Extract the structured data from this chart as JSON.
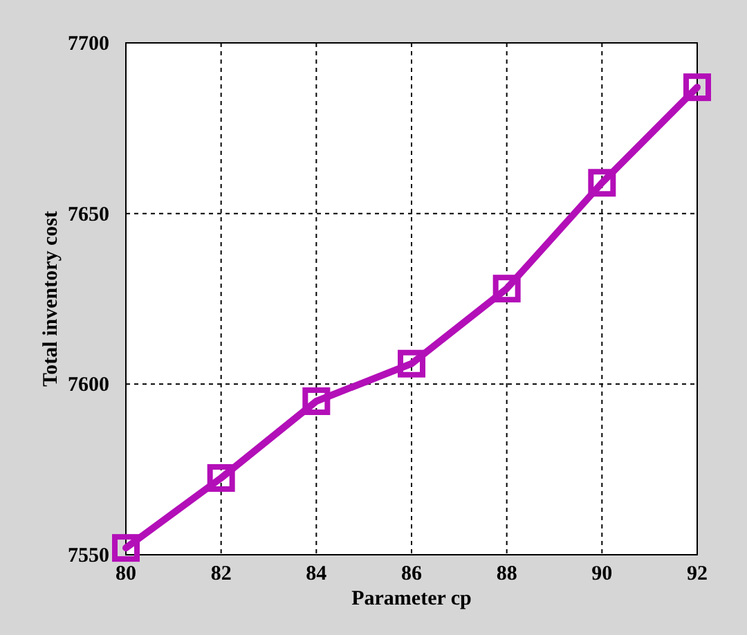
{
  "chart_data": {
    "type": "line",
    "xlabel": "Parameter cp",
    "ylabel": "Total inventory cost",
    "x": [
      80,
      82,
      84,
      86,
      88,
      90,
      92
    ],
    "series": [
      {
        "color": "#b30fb8",
        "values": [
          7552,
          7572.5,
          7595,
          7606,
          7628,
          7659,
          7687
        ]
      }
    ],
    "xlim": [
      80,
      92
    ],
    "xticks": [
      80,
      82,
      84,
      86,
      88,
      90,
      92
    ],
    "ylim": [
      7550,
      7700
    ],
    "yticks": [
      7550,
      7600,
      7650,
      7700
    ],
    "grid": true,
    "marker": "square",
    "line_style": "solid"
  }
}
